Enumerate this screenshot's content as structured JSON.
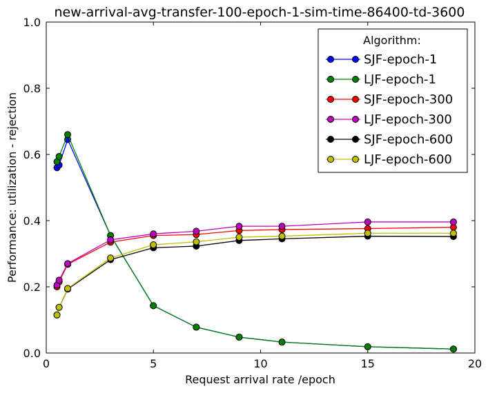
{
  "chart_data": {
    "type": "line",
    "title": "new-arrival-avg-transfer-100-epoch-1-sim-time-86400-td-3600",
    "xlabel": "Request arrival rate /epoch",
    "ylabel": "Performance: utilization - rejection",
    "xlim": [
      0,
      20
    ],
    "ylim": [
      0.0,
      1.0
    ],
    "xticks": [
      0,
      5,
      10,
      15,
      20
    ],
    "xtick_labels": [
      "0",
      "5",
      "10",
      "15",
      "20"
    ],
    "yticks": [
      0.0,
      0.2,
      0.4,
      0.6,
      0.8,
      1.0
    ],
    "ytick_labels": [
      "0.0",
      "0.2",
      "0.4",
      "0.6",
      "0.8",
      "1.0"
    ],
    "grid": false,
    "legend": {
      "title": "Algorithm:",
      "placement": "top-right"
    },
    "x": [
      0.5,
      0.6,
      1,
      3,
      5,
      7,
      9,
      11,
      15,
      19
    ],
    "series": [
      {
        "name": "SJF-epoch-1",
        "color": "#0000ff",
        "values": [
          0.56,
          0.568,
          0.645,
          0.355,
          0.143,
          0.078,
          0.048,
          0.033,
          0.019,
          0.012
        ]
      },
      {
        "name": "LJF-epoch-1",
        "color": "#008000",
        "values": [
          0.578,
          0.594,
          0.66,
          0.355,
          0.143,
          0.078,
          0.048,
          0.033,
          0.019,
          0.012
        ]
      },
      {
        "name": "SJF-epoch-300",
        "color": "#ff0000",
        "values": [
          0.2,
          0.215,
          0.268,
          0.335,
          0.355,
          0.358,
          0.37,
          0.373,
          0.376,
          0.38
        ]
      },
      {
        "name": "LJF-epoch-300",
        "color": "#bf00bf",
        "values": [
          0.205,
          0.22,
          0.27,
          0.342,
          0.36,
          0.368,
          0.383,
          0.383,
          0.396,
          0.396
        ]
      },
      {
        "name": "SJF-epoch-600",
        "color": "#000000",
        "values": [
          0.115,
          0.138,
          0.193,
          0.282,
          0.318,
          0.323,
          0.34,
          0.345,
          0.353,
          0.352
        ]
      },
      {
        "name": "LJF-epoch-600",
        "color": "#bfbf00",
        "values": [
          0.115,
          0.138,
          0.195,
          0.287,
          0.327,
          0.336,
          0.35,
          0.353,
          0.362,
          0.362
        ]
      }
    ]
  }
}
